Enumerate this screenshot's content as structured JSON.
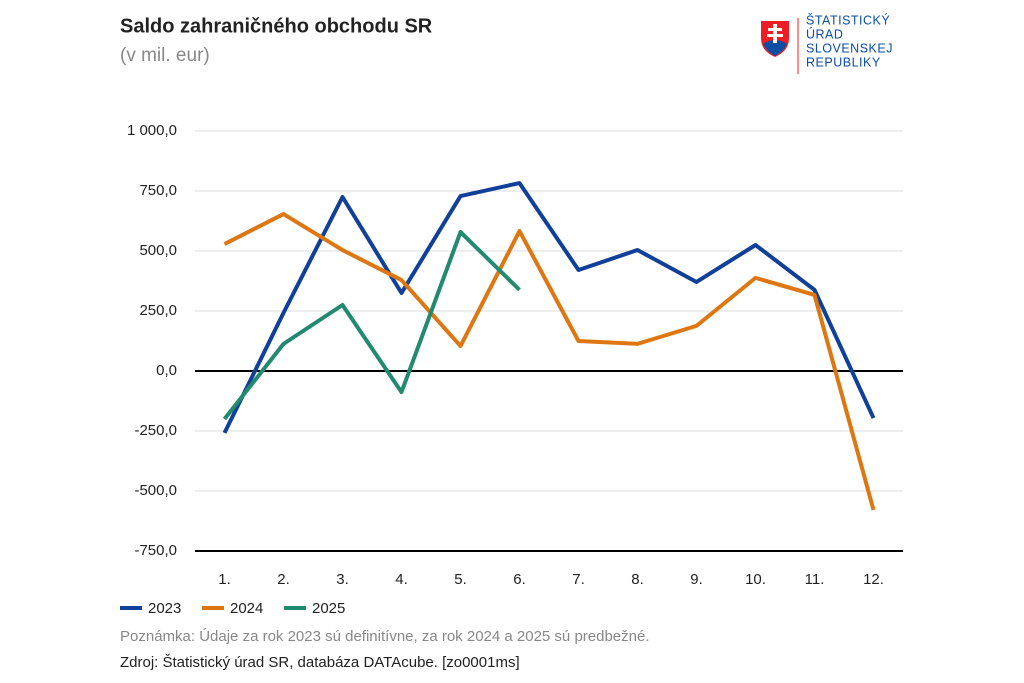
{
  "chart_data": {
    "type": "line",
    "title": "Saldo zahraničného obchodu SR",
    "subtitle": "(v mil. eur)",
    "logo_text": [
      "ŠTATISTICKÝ",
      "ÚRAD",
      "SLOVENSKEJ",
      "REPUBLIKY"
    ],
    "categories": [
      "1.",
      "2.",
      "3.",
      "4.",
      "5.",
      "6.",
      "7.",
      "8.",
      "9.",
      "10.",
      "11.",
      "12."
    ],
    "series": [
      {
        "name": "2023",
        "color": "#11409a",
        "values": [
          -258,
          242,
          725,
          325,
          729,
          783,
          421,
          504,
          371,
          525,
          338,
          -196
        ]
      },
      {
        "name": "2024",
        "color": "#de7611",
        "values": [
          529,
          654,
          504,
          379,
          104,
          583,
          125,
          113,
          188,
          388,
          317,
          -579
        ]
      },
      {
        "name": "2025",
        "color": "#228a6e",
        "values": [
          -200,
          113,
          275,
          -88,
          579,
          338,
          null,
          null,
          null,
          null,
          null,
          null
        ]
      }
    ],
    "ylim": [
      -750,
      1000
    ],
    "yticks": [
      {
        "value": -750,
        "label": "-750,0"
      },
      {
        "value": -500,
        "label": "-500,0"
      },
      {
        "value": -250,
        "label": "-250,0"
      },
      {
        "value": 0,
        "label": "0,0"
      },
      {
        "value": 250,
        "label": "250,0"
      },
      {
        "value": 500,
        "label": "500,0"
      },
      {
        "value": 750,
        "label": "750,0"
      },
      {
        "value": 1000,
        "label": "1 000,0"
      }
    ],
    "grid": true,
    "legend": "bottom-left",
    "note": "Poznámka: Údaje za rok 2023 sú definitívne, za rok 2024 a 2025 sú predbežné.",
    "source": "Zdroj: Štatistický úrad SR, databáza DATAcube. [zo0001ms]"
  }
}
